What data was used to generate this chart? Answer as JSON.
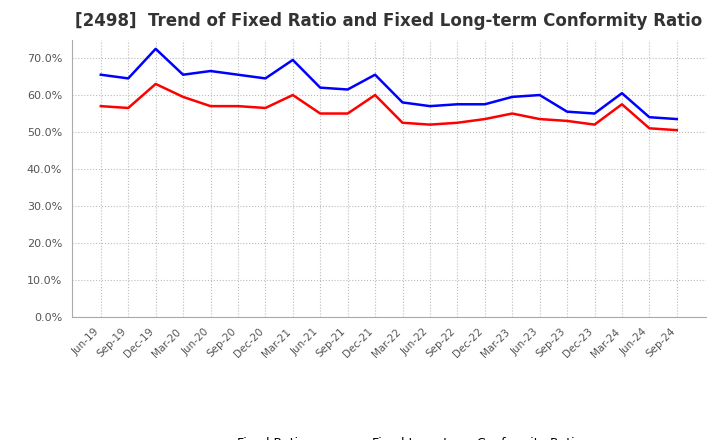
{
  "title": "[2498]  Trend of Fixed Ratio and Fixed Long-term Conformity Ratio",
  "x_labels": [
    "Jun-19",
    "Sep-19",
    "Dec-19",
    "Mar-20",
    "Jun-20",
    "Sep-20",
    "Dec-20",
    "Mar-21",
    "Jun-21",
    "Sep-21",
    "Dec-21",
    "Mar-22",
    "Jun-22",
    "Sep-22",
    "Dec-22",
    "Mar-23",
    "Jun-23",
    "Sep-23",
    "Dec-23",
    "Mar-24",
    "Jun-24",
    "Sep-24"
  ],
  "fixed_ratio": [
    65.5,
    64.5,
    72.5,
    65.5,
    66.5,
    65.5,
    64.5,
    69.5,
    62.0,
    61.5,
    65.5,
    58.0,
    57.0,
    57.5,
    57.5,
    59.5,
    60.0,
    55.5,
    55.0,
    60.5,
    54.0,
    53.5
  ],
  "fixed_lt_ratio": [
    57.0,
    56.5,
    63.0,
    59.5,
    57.0,
    57.0,
    56.5,
    60.0,
    55.0,
    55.0,
    60.0,
    52.5,
    52.0,
    52.5,
    53.5,
    55.0,
    53.5,
    53.0,
    52.0,
    57.5,
    51.0,
    50.5
  ],
  "fixed_ratio_color": "#0000FF",
  "fixed_lt_ratio_color": "#FF0000",
  "ylim": [
    0,
    75
  ],
  "yticks": [
    0,
    10,
    20,
    30,
    40,
    50,
    60,
    70
  ],
  "background_color": "#FFFFFF",
  "grid_color": "#BBBBBB",
  "title_fontsize": 12,
  "title_color": "#333333",
  "legend_fixed_ratio": "Fixed Ratio",
  "legend_fixed_lt_ratio": "Fixed Long-term Conformity Ratio",
  "tick_label_color": "#555555"
}
